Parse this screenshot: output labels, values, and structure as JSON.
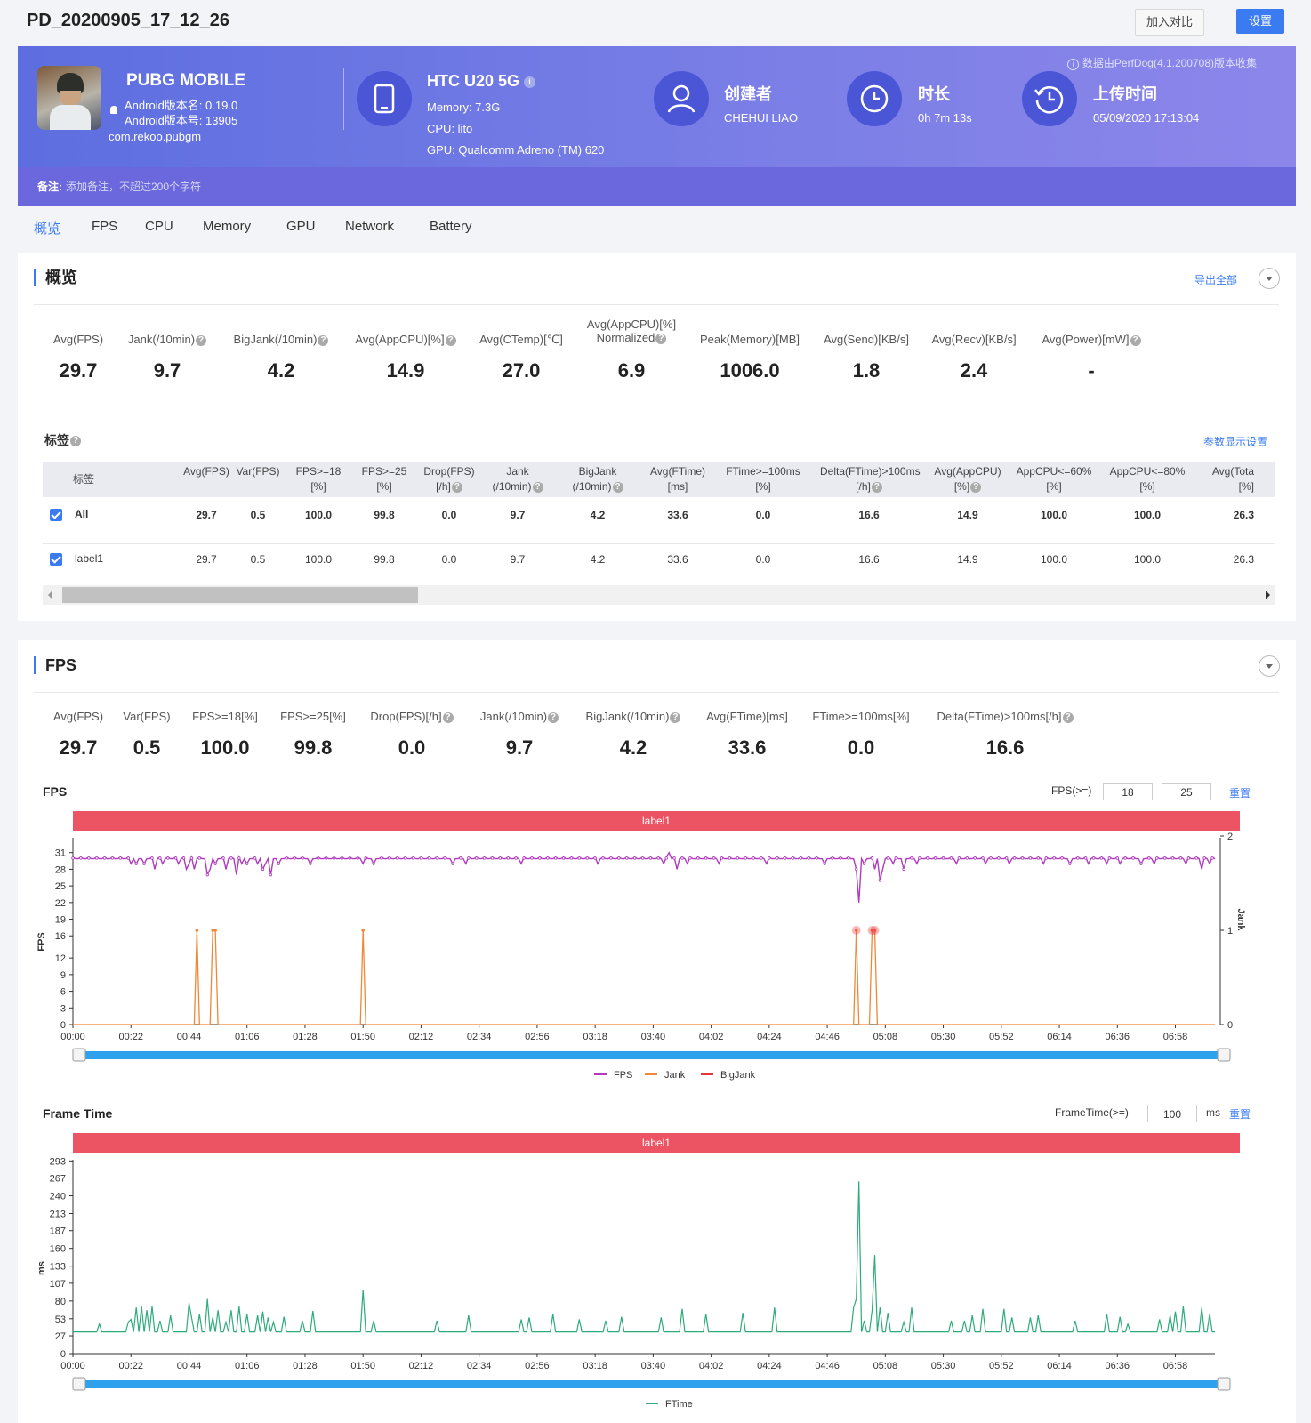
{
  "page_title": "PD_20200905_17_12_26",
  "buttons": {
    "compare": "加入对比",
    "settings": "设置"
  },
  "app": {
    "name": "PUBG MOBILE",
    "android_version_name": "Android版本名: 0.19.0",
    "android_version_code": "Android版本号: 13905",
    "package": "com.rekoo.pubgm"
  },
  "device": {
    "name": "HTC U20 5G",
    "memory": "Memory: 7.3G",
    "cpu": "CPU: lito",
    "gpu": "GPU: Qualcomm Adreno (TM) 620"
  },
  "creator": {
    "label": "创建者",
    "value": "CHEHUI LIAO"
  },
  "duration": {
    "label": "时长",
    "value": "0h 7m 13s"
  },
  "upload": {
    "label": "上传时间",
    "value": "05/09/2020 17:13:04"
  },
  "collected_note": "数据由PerfDog(4.1.200708)版本收集",
  "remark": {
    "label": "备注:",
    "placeholder": "添加备注，不超过200个字符"
  },
  "tabs": [
    "概览",
    "FPS",
    "CPU",
    "Memory",
    "GPU",
    "Network",
    "Battery"
  ],
  "overview": {
    "title": "概览",
    "export_all": "导出全部",
    "metrics": [
      {
        "label": "Avg(FPS)",
        "value": "29.7"
      },
      {
        "label": "Jank(/10min)",
        "value": "9.7"
      },
      {
        "label": "BigJank(/10min)",
        "value": "4.2"
      },
      {
        "label": "Avg(AppCPU)[%]",
        "value": "14.9"
      },
      {
        "label": "Avg(CTemp)[℃]",
        "value": "27.0"
      },
      {
        "label": "Avg(AppCPU)[%]",
        "label2": "Normalized",
        "value": "6.9"
      },
      {
        "label": "Peak(Memory)[MB]",
        "value": "1006.0"
      },
      {
        "label": "Avg(Send)[KB/s]",
        "value": "1.8"
      },
      {
        "label": "Avg(Recv)[KB/s]",
        "value": "2.4"
      },
      {
        "label": "Avg(Power)[mW]",
        "value": "-"
      }
    ],
    "tags_title": "标签",
    "param_settings": "参数显示设置",
    "table_headers": [
      [
        "标签",
        ""
      ],
      [
        "Avg(FPS)",
        ""
      ],
      [
        "Var(FPS)",
        ""
      ],
      [
        "FPS>=18",
        "[%]"
      ],
      [
        "FPS>=25",
        "[%]"
      ],
      [
        "Drop(FPS)",
        "[/h]"
      ],
      [
        "Jank",
        "(/10min)"
      ],
      [
        "BigJank",
        "(/10min)"
      ],
      [
        "Avg(FTime)",
        "[ms]"
      ],
      [
        "FTime>=100ms",
        "[%]"
      ],
      [
        "Delta(FTime)>100ms",
        "[/h]"
      ],
      [
        "Avg(AppCPU)",
        "[%]"
      ],
      [
        "AppCPU<=60%",
        "[%]"
      ],
      [
        "AppCPU<=80%",
        "[%]"
      ],
      [
        "Avg(Tota",
        "[%]"
      ]
    ],
    "rows": [
      {
        "label": "All",
        "values": [
          "29.7",
          "0.5",
          "100.0",
          "99.8",
          "0.0",
          "9.7",
          "4.2",
          "33.6",
          "0.0",
          "16.6",
          "14.9",
          "100.0",
          "100.0",
          "26.3"
        ]
      },
      {
        "label": "label1",
        "values": [
          "29.7",
          "0.5",
          "100.0",
          "99.8",
          "0.0",
          "9.7",
          "4.2",
          "33.6",
          "0.0",
          "16.6",
          "14.9",
          "100.0",
          "100.0",
          "26.3"
        ]
      }
    ]
  },
  "fps_section": {
    "title": "FPS",
    "metrics": [
      {
        "label": "Avg(FPS)",
        "value": "29.7"
      },
      {
        "label": "Var(FPS)",
        "value": "0.5"
      },
      {
        "label": "FPS>=18[%]",
        "value": "100.0"
      },
      {
        "label": "FPS>=25[%]",
        "value": "99.8"
      },
      {
        "label": "Drop(FPS)[/h]",
        "value": "0.0"
      },
      {
        "label": "Jank(/10min)",
        "value": "9.7"
      },
      {
        "label": "BigJank(/10min)",
        "value": "4.2"
      },
      {
        "label": "Avg(FTime)[ms]",
        "value": "33.6"
      },
      {
        "label": "FTime>=100ms[%]",
        "value": "0.0"
      },
      {
        "label": "Delta(FTime)>100ms[/h]",
        "value": "16.6"
      }
    ],
    "fps_chart_title": "FPS",
    "fps_threshold_label": "FPS(>=)",
    "fps_threshold_1": "18",
    "fps_threshold_2": "25",
    "reset": "重置",
    "label_band": "label1",
    "ftime_chart_title": "Frame Time",
    "ftime_threshold_label": "FrameTime(>=)",
    "ftime_threshold": "100",
    "ftime_unit": "ms"
  },
  "chart_data": [
    {
      "type": "line",
      "title": "FPS",
      "xlabel": "",
      "ylabel": "FPS",
      "y2label": "Jank",
      "x_ticks": [
        "00:00",
        "00:22",
        "00:44",
        "01:06",
        "01:28",
        "01:50",
        "02:12",
        "02:34",
        "02:56",
        "03:18",
        "03:40",
        "04:02",
        "04:24",
        "04:46",
        "05:08",
        "05:30",
        "05:52",
        "06:14",
        "06:36",
        "06:58"
      ],
      "y_ticks": [
        0,
        3,
        6,
        9,
        12,
        16,
        19,
        22,
        25,
        28,
        31
      ],
      "y2_ticks": [
        0,
        1,
        2
      ],
      "ylim": [
        0,
        34
      ],
      "y2lim": [
        0,
        2
      ],
      "duration_s": 433,
      "series": [
        {
          "name": "FPS",
          "color": "#b03bbf",
          "baseline": 30,
          "dips": [
            [
              22,
              29
            ],
            [
              24,
              29
            ],
            [
              27,
              29
            ],
            [
              31,
              28
            ],
            [
              34,
              29
            ],
            [
              40,
              29
            ],
            [
              43,
              28
            ],
            [
              44,
              29
            ],
            [
              46,
              28
            ],
            [
              51,
              27
            ],
            [
              52,
              28
            ],
            [
              54,
              29
            ],
            [
              58,
              28
            ],
            [
              62,
              27
            ],
            [
              64,
              29
            ],
            [
              66,
              29
            ],
            [
              70,
              29
            ],
            [
              72,
              28
            ],
            [
              73,
              29
            ],
            [
              75,
              27
            ],
            [
              78,
              29
            ],
            [
              90,
              29
            ],
            [
              110,
              29
            ],
            [
              114,
              29
            ],
            [
              144,
              29
            ],
            [
              149,
              29
            ],
            [
              170,
              29
            ],
            [
              199,
              29
            ],
            [
              224,
              29
            ],
            [
              226,
              31
            ],
            [
              229,
              28
            ],
            [
              233,
              29
            ],
            [
              245,
              29
            ],
            [
              263,
              29
            ],
            [
              285,
              29
            ],
            [
              297,
              28
            ],
            [
              298,
              22
            ],
            [
              300,
              29
            ],
            [
              304,
              28
            ],
            [
              306,
              26
            ],
            [
              307,
              28
            ],
            [
              311,
              29
            ],
            [
              315,
              28
            ],
            [
              320,
              29
            ],
            [
              335,
              29
            ],
            [
              346,
              29
            ],
            [
              355,
              29
            ],
            [
              368,
              29
            ],
            [
              378,
              29
            ],
            [
              385,
              29
            ],
            [
              392,
              29
            ],
            [
              397,
              29
            ],
            [
              405,
              29
            ],
            [
              410,
              29
            ],
            [
              422,
              29
            ],
            [
              428,
              28
            ],
            [
              431,
              29
            ]
          ]
        },
        {
          "name": "Jank",
          "color": "#f0873a",
          "spikes": [
            47,
            53,
            54,
            110,
            297,
            303,
            304
          ]
        },
        {
          "name": "BigJank",
          "color": "#e8333c",
          "spikes": [
            297,
            303,
            304
          ]
        }
      ]
    },
    {
      "type": "line",
      "title": "Frame Time",
      "xlabel": "",
      "ylabel": "ms",
      "x_ticks": [
        "00:00",
        "00:22",
        "00:44",
        "01:06",
        "01:28",
        "01:50",
        "02:12",
        "02:34",
        "02:56",
        "03:18",
        "03:40",
        "04:02",
        "04:24",
        "04:46",
        "05:08",
        "05:30",
        "05:52",
        "06:14",
        "06:36",
        "06:58"
      ],
      "y_ticks": [
        0,
        27,
        53,
        80,
        107,
        133,
        160,
        187,
        213,
        240,
        267,
        293
      ],
      "ylim": [
        0,
        300
      ],
      "duration_s": 433,
      "series": [
        {
          "name": "FTime",
          "color": "#2eab7b",
          "baseline": 33,
          "spikes": [
            [
              10,
              45
            ],
            [
              21,
              48
            ],
            [
              22,
              52
            ],
            [
              24,
              70
            ],
            [
              26,
              72
            ],
            [
              28,
              66
            ],
            [
              30,
              72
            ],
            [
              33,
              50
            ],
            [
              37,
              58
            ],
            [
              44,
              77
            ],
            [
              45,
              55
            ],
            [
              48,
              60
            ],
            [
              51,
              83
            ],
            [
              53,
              55
            ],
            [
              55,
              66
            ],
            [
              58,
              48
            ],
            [
              60,
              66
            ],
            [
              63,
              72
            ],
            [
              66,
              60
            ],
            [
              70,
              58
            ],
            [
              72,
              64
            ],
            [
              74,
              55
            ],
            [
              76,
              48
            ],
            [
              80,
              56
            ],
            [
              87,
              50
            ],
            [
              91,
              65
            ],
            [
              110,
              97
            ],
            [
              114,
              50
            ],
            [
              138,
              50
            ],
            [
              150,
              58
            ],
            [
              170,
              52
            ],
            [
              173,
              55
            ],
            [
              182,
              60
            ],
            [
              192,
              52
            ],
            [
              202,
              50
            ],
            [
              208,
              56
            ],
            [
              223,
              55
            ],
            [
              231,
              68
            ],
            [
              240,
              60
            ],
            [
              254,
              62
            ],
            [
              266,
              70
            ],
            [
              296,
              70
            ],
            [
              297,
              83
            ],
            [
              298,
              262
            ],
            [
              300,
              50
            ],
            [
              303,
              66
            ],
            [
              304,
              150
            ],
            [
              306,
              70
            ],
            [
              309,
              62
            ],
            [
              315,
              48
            ],
            [
              318,
              70
            ],
            [
              333,
              50
            ],
            [
              338,
              50
            ],
            [
              341,
              58
            ],
            [
              345,
              68
            ],
            [
              353,
              68
            ],
            [
              356,
              55
            ],
            [
              363,
              55
            ],
            [
              366,
              58
            ],
            [
              380,
              50
            ],
            [
              392,
              60
            ],
            [
              397,
              56
            ],
            [
              400,
              45
            ],
            [
              412,
              52
            ],
            [
              416,
              58
            ],
            [
              418,
              64
            ],
            [
              421,
              72
            ],
            [
              428,
              70
            ],
            [
              431,
              60
            ]
          ]
        }
      ]
    }
  ]
}
